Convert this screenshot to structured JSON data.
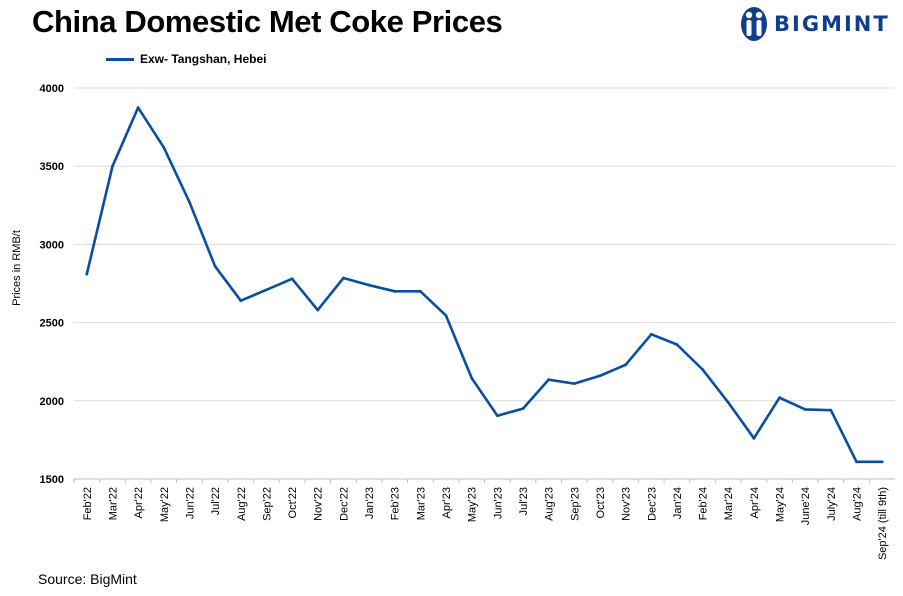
{
  "header": {
    "title": "China Domestic Met Coke Prices",
    "brand": "BIGMINT",
    "brand_color": "#0f3f8c"
  },
  "footer": {
    "source": "Source: BigMint"
  },
  "chart_data": {
    "type": "line",
    "title": "China Domestic Met Coke Prices",
    "xlabel": "",
    "ylabel": "Prices in RMB/t",
    "ylim": [
      1500,
      4000
    ],
    "yticks": [
      1500,
      2000,
      2500,
      3000,
      3500,
      4000
    ],
    "grid": true,
    "legend_position": "top-left",
    "categories": [
      "Feb'22",
      "Mar'22",
      "Apr'22",
      "May'22",
      "Jun'22",
      "Jul'22",
      "Aug'22",
      "Sep'22",
      "Oct'22",
      "Nov'22",
      "Dec'22",
      "Jan'23",
      "Feb'23",
      "Mar'23",
      "Apr'23",
      "May'23",
      "Jun'23",
      "Jul'23",
      "Aug'23",
      "Sep'23",
      "Oct'23",
      "Nov'23",
      "Dec'23",
      "Jan'24",
      "Feb'24",
      "Mar'24",
      "Apr'24",
      "May'24",
      "June'24",
      "July'24",
      "Aug'24",
      "Sep'24 (till 9th)"
    ],
    "series": [
      {
        "name": "Exw- Tangshan, Hebei",
        "color": "#0a4ea3",
        "values": [
          2810,
          3500,
          3875,
          3620,
          3270,
          2860,
          2640,
          2710,
          2780,
          2580,
          2785,
          2740,
          2700,
          2700,
          2545,
          2145,
          1905,
          1950,
          2135,
          2110,
          2160,
          2230,
          2425,
          2360,
          2200,
          1990,
          1760,
          2020,
          1945,
          1940,
          1610,
          1610
        ]
      }
    ]
  }
}
